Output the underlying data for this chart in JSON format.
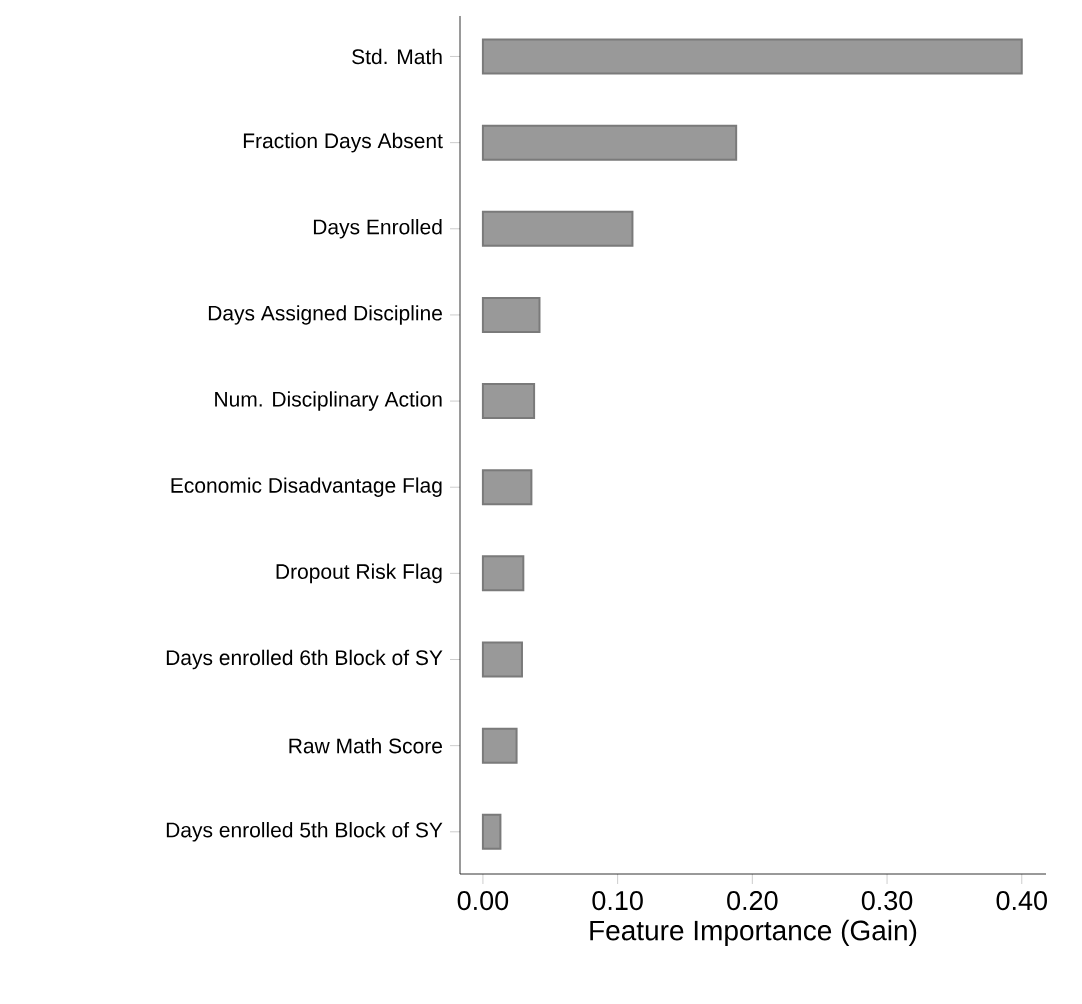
{
  "chart_data": {
    "type": "bar",
    "orientation": "horizontal",
    "categories": [
      "Std. Math",
      "Fraction Days Absent",
      "Days Enrolled",
      "Days Assigned Discipline",
      "Num. Disciplinary Action",
      "Economic Disadvantage Flag",
      "Dropout Risk Flag",
      "Days enrolled 6th Block of SY",
      "Raw Math Score",
      "Days enrolled 5th Block of SY"
    ],
    "values": [
      0.4,
      0.188,
      0.111,
      0.042,
      0.038,
      0.036,
      0.03,
      0.029,
      0.025,
      0.013
    ],
    "color": "#999999",
    "xlabel": "Feature Importance (Gain)",
    "xlim": [
      -0.017,
      0.418
    ],
    "xticks": [
      {
        "value": 0,
        "label": "0.00"
      },
      {
        "value": 0.1,
        "label": "0.10"
      },
      {
        "value": 0.2,
        "label": "0.20"
      },
      {
        "value": 0.3,
        "label": "0.30"
      },
      {
        "value": 0.4,
        "label": "0.40"
      }
    ]
  }
}
